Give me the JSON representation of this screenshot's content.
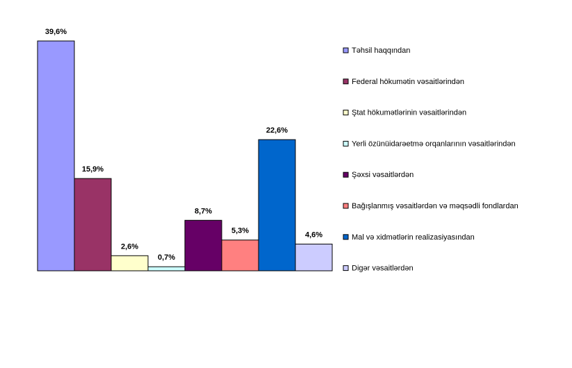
{
  "chart_data": {
    "type": "bar",
    "title": "",
    "xlabel": "",
    "ylabel": "",
    "ylim": [
      0,
      40
    ],
    "grid": false,
    "legend_position": "right",
    "categories": [
      "Təhsil haqqından",
      "Federal hökumətin vəsaitlərindən",
      "Ştat hökumətlərinin vəsaitlərindən",
      "Yerli özünüidarəetmə orqanlarının vəsaitlərindən",
      "Şəxsi vəsaitlərdən",
      "Bağışlanmış vəsaitlərdən və məqsədli fondlardan",
      "Mal və xidmətlərin realizasiyasından",
      "Digər vəsaitlərdən"
    ],
    "values": [
      39.6,
      15.9,
      2.6,
      0.7,
      8.7,
      5.3,
      22.6,
      4.6
    ],
    "value_labels": [
      "39,6%",
      "15,9%",
      "2,6%",
      "0,7%",
      "8,7%",
      "5,3%",
      "22,6%",
      "4,6%"
    ],
    "colors": [
      "#9999FF",
      "#993366",
      "#FFFFCC",
      "#CCFFFF",
      "#660066",
      "#FF8080",
      "#0066CC",
      "#CCCCFF"
    ]
  }
}
